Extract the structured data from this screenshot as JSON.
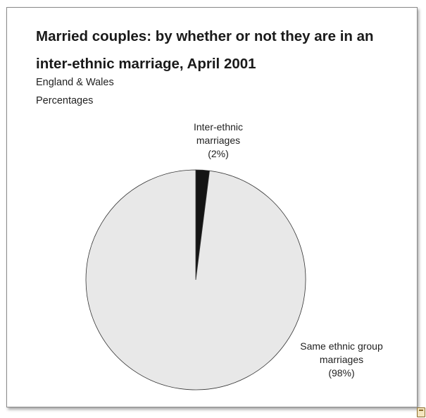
{
  "figure": {
    "title_line1": "Married couples: by whether or not they are in an",
    "title_line2": "inter-ethnic marriage, April 2001",
    "subtitle_region": "England & Wales",
    "subtitle_units": "Percentages"
  },
  "chart_data": {
    "type": "pie",
    "title": "Married couples: by whether or not they are in an inter-ethnic marriage, April 2001",
    "slices": [
      {
        "label_lines": [
          "Inter-ethnic",
          "marriages",
          "(2%)"
        ],
        "value": 2,
        "color": "#141414"
      },
      {
        "label_lines": [
          "Same ethnic group",
          "marriages",
          "(98%)"
        ],
        "value": 98,
        "color": "#e8e8e8"
      }
    ],
    "start_angle": "top, clockwise"
  }
}
